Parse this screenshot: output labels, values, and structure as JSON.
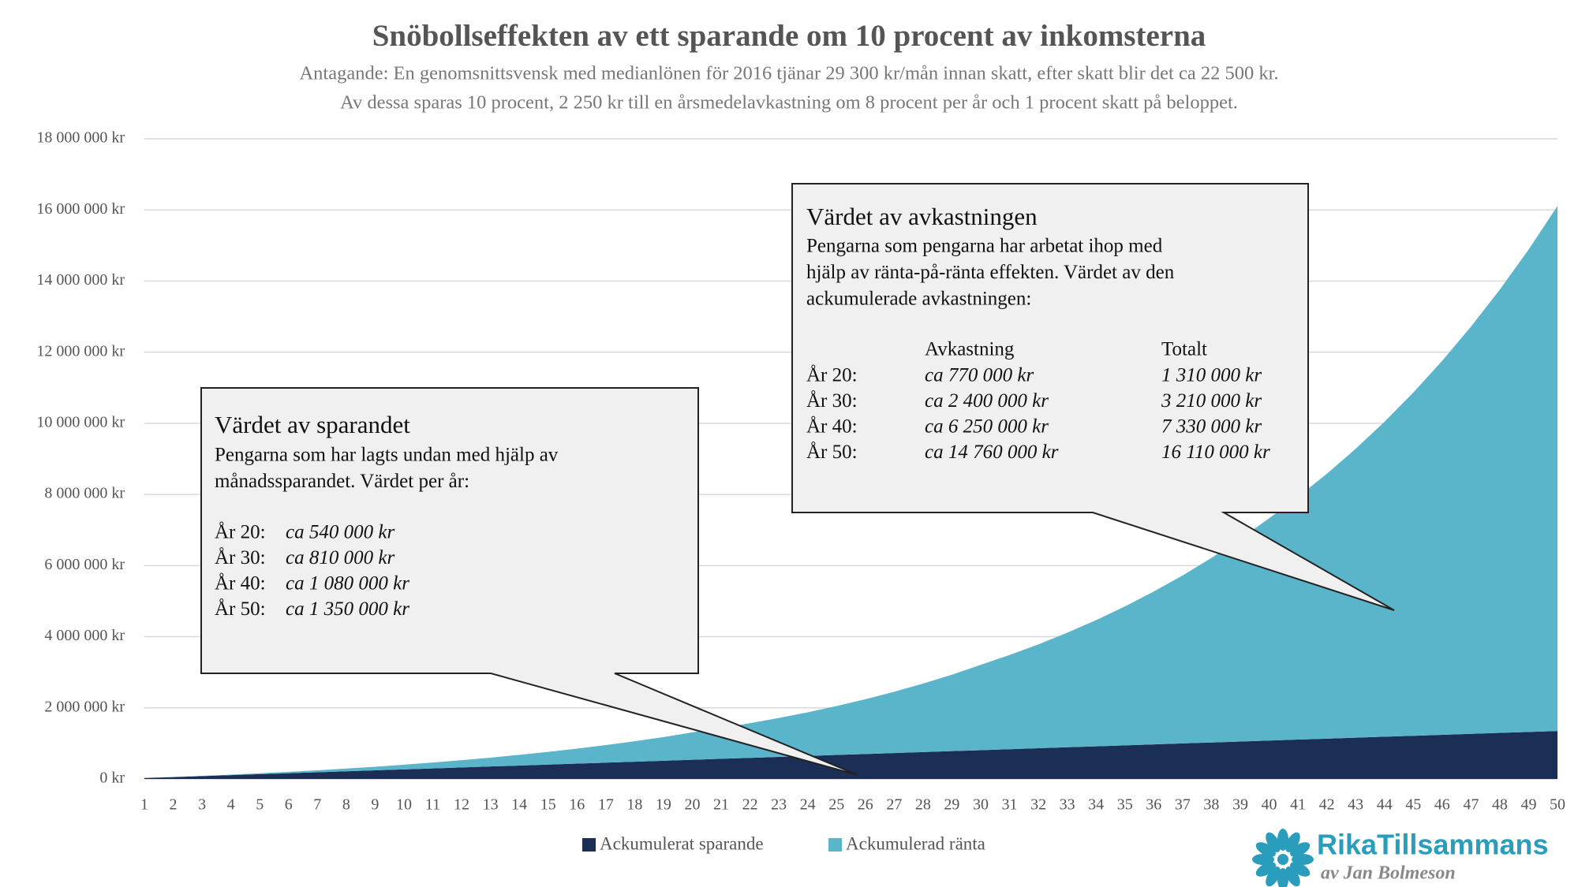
{
  "chart_data": {
    "type": "stacked-area",
    "title": "Snöbollseffekten av ett sparande om 10 procent av inkomsterna",
    "subtitle": [
      "Antagande: En genomsnittsvensk med medianlönen för 2016 tjänar 29 300 kr/mån innan skatt, efter skatt blir det ca 22 500 kr.",
      "Av dessa sparas 10 procent, 2 250 kr till en årsmedelavkastning om 8 procent per år och 1 procent skatt på beloppet."
    ],
    "categories": [
      "1",
      "2",
      "3",
      "4",
      "5",
      "6",
      "7",
      "8",
      "9",
      "10",
      "11",
      "12",
      "13",
      "14",
      "15",
      "16",
      "17",
      "18",
      "19",
      "20",
      "21",
      "22",
      "23",
      "24",
      "25",
      "26",
      "27",
      "28",
      "29",
      "30",
      "31",
      "32",
      "33",
      "34",
      "35",
      "36",
      "37",
      "38",
      "39",
      "40",
      "41",
      "42",
      "43",
      "44",
      "45",
      "46",
      "47",
      "48",
      "49",
      "50"
    ],
    "series": [
      {
        "name": "Ackumulerat sparande",
        "color": "#1b2f56",
        "values": [
          27000,
          54000,
          81000,
          108000,
          135000,
          162000,
          189000,
          216000,
          243000,
          270000,
          297000,
          324000,
          351000,
          378000,
          405000,
          432000,
          459000,
          486000,
          513000,
          540000,
          567000,
          594000,
          621000,
          648000,
          675000,
          702000,
          729000,
          756000,
          783000,
          810000,
          837000,
          864000,
          891000,
          918000,
          945000,
          972000,
          999000,
          1026000,
          1053000,
          1080000,
          1107000,
          1134000,
          1161000,
          1188000,
          1215000,
          1242000,
          1269000,
          1296000,
          1323000,
          1350000
        ]
      },
      {
        "name": "Ackumulerad ränta",
        "color": "#5ab4ca",
        "values": [
          0,
          2300,
          7100,
          14600,
          25000,
          38600,
          55600,
          76400,
          101300,
          130700,
          164700,
          203900,
          248700,
          299700,
          357200,
          422000,
          494600,
          575000,
          666000,
          770000,
          866000,
          973000,
          1093000,
          1226000,
          1375000,
          1540000,
          1723000,
          1926000,
          2150000,
          2400000,
          2649000,
          2922000,
          3221000,
          3548000,
          3906000,
          4297000,
          4723000,
          5189000,
          5697000,
          6250000,
          6823000,
          7446000,
          8121000,
          8854000,
          9650000,
          10513000,
          11449000,
          12463000,
          13563000,
          14760000
        ]
      }
    ],
    "ylim": [
      0,
      18000000
    ],
    "yticks": [
      {
        "value": 0,
        "label": "0 kr"
      },
      {
        "value": 2000000,
        "label": "2 000 000 kr"
      },
      {
        "value": 4000000,
        "label": "4 000 000 kr"
      },
      {
        "value": 6000000,
        "label": "6 000 000 kr"
      },
      {
        "value": 8000000,
        "label": "8 000 000 kr"
      },
      {
        "value": 10000000,
        "label": "10 000 000 kr"
      },
      {
        "value": 12000000,
        "label": "12 000 000 kr"
      },
      {
        "value": 14000000,
        "label": "14 000 000 kr"
      },
      {
        "value": 16000000,
        "label": "16 000 000 kr"
      },
      {
        "value": 18000000,
        "label": "18 000 000 kr"
      }
    ],
    "grid": true,
    "legend": "bottom",
    "annotations": [
      {
        "title": "Värdet av sparandet",
        "lines": [
          "Pengarna som har lagts undan med hjälp av",
          "månadssparandet. Värdet per år:"
        ],
        "rows": [
          [
            "År 20:",
            "ca 540 000 kr"
          ],
          [
            "År 30:",
            "ca 810 000 kr"
          ],
          [
            "År 40:",
            "ca 1 080 000 kr"
          ],
          [
            "År 50:",
            "ca 1 350 000 kr"
          ]
        ]
      },
      {
        "title": "Värdet av avkastningen",
        "lines": [
          "Pengarna som pengarna har arbetat ihop med",
          "hjälp av ränta-på-ränta effekten. Värdet av den",
          "ackumulerade avkastningen:"
        ],
        "header": [
          "Avkastning",
          "Totalt"
        ],
        "rows": [
          [
            "År 20:",
            "ca 770 000 kr",
            "1 310 000 kr"
          ],
          [
            "År 30:",
            "ca 2 400 000 kr",
            "3 210 000 kr"
          ],
          [
            "År 40:",
            "ca 6 250 000 kr",
            "7 330 000 kr"
          ],
          [
            "År 50:",
            "ca 14 760 000 kr",
            "16 110 000 kr"
          ]
        ]
      }
    ]
  },
  "logo": {
    "name": "RikaTillsammans",
    "byline": "av Jan Bolmeson"
  }
}
